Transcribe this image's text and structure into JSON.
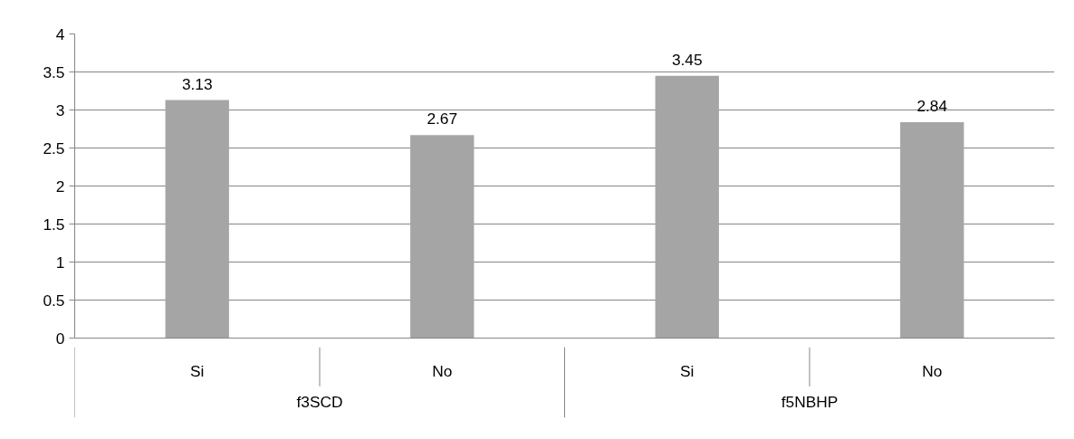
{
  "chart_data": {
    "type": "bar",
    "categories": [
      "Si",
      "No",
      "Si",
      "No"
    ],
    "values": [
      3.13,
      2.67,
      3.45,
      2.84
    ],
    "color": "#a5a5a5",
    "ylim": [
      0,
      4
    ],
    "yticks": [
      0,
      0.5,
      1,
      1.5,
      2,
      2.5,
      3,
      3.5,
      4
    ],
    "grid": "y",
    "data_labels": true,
    "annotations": [
      "f3SCD",
      "f5NBHP"
    ]
  }
}
